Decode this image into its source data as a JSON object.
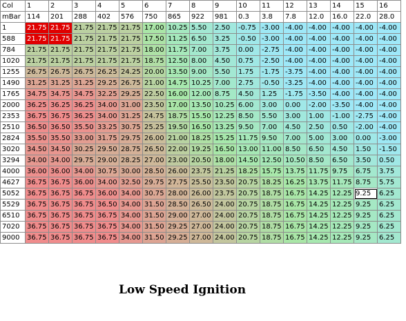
{
  "title": "Low Speed Ignition",
  "header_row_label": "Col",
  "unit_row_label": "mBar",
  "columns": [
    {
      "col": "1",
      "val": "114"
    },
    {
      "col": "2",
      "val": "201"
    },
    {
      "col": "3",
      "val": "288"
    },
    {
      "col": "4",
      "val": "402"
    },
    {
      "col": "5",
      "val": "576"
    },
    {
      "col": "6",
      "val": "750"
    },
    {
      "col": "7",
      "val": "865"
    },
    {
      "col": "8",
      "val": "922"
    },
    {
      "col": "9",
      "val": "981"
    },
    {
      "col": "10",
      "val": "0.3"
    },
    {
      "col": "11",
      "val": "3.8"
    },
    {
      "col": "12",
      "val": "7.8"
    },
    {
      "col": "13",
      "val": "12.0"
    },
    {
      "col": "14",
      "val": "16.0"
    },
    {
      "col": "15",
      "val": "22.0"
    },
    {
      "col": "16",
      "val": "28.0"
    }
  ],
  "rows": [
    {
      "label": "1",
      "values": [
        "21.75",
        "21.75",
        "21.75",
        "21.75",
        "21.75",
        "17.00",
        "10.25",
        "5.50",
        "2.50",
        "-0.75",
        "-3.00",
        "-4.00",
        "-4.00",
        "-4.00",
        "-4.00",
        "-4.00"
      ]
    },
    {
      "label": "588",
      "values": [
        "21.75",
        "21.75",
        "21.75",
        "21.75",
        "21.75",
        "17.50",
        "11.25",
        "6.50",
        "3.25",
        "-0.50",
        "-3.00",
        "-4.00",
        "-4.00",
        "-4.00",
        "-4.00",
        "-4.00"
      ]
    },
    {
      "label": "784",
      "values": [
        "21.75",
        "21.75",
        "21.75",
        "21.75",
        "21.75",
        "18.00",
        "11.75",
        "7.00",
        "3.75",
        "0.00",
        "-2.75",
        "-4.00",
        "-4.00",
        "-4.00",
        "-4.00",
        "-4.00"
      ]
    },
    {
      "label": "1020",
      "values": [
        "21.75",
        "21.75",
        "21.75",
        "21.75",
        "21.75",
        "18.75",
        "12.50",
        "8.00",
        "4.50",
        "0.75",
        "-2.50",
        "-4.00",
        "-4.00",
        "-4.00",
        "-4.00",
        "-4.00"
      ]
    },
    {
      "label": "1255",
      "values": [
        "26.75",
        "26.75",
        "26.75",
        "26.25",
        "24.25",
        "20.00",
        "13.50",
        "9.00",
        "5.50",
        "1.75",
        "-1.75",
        "-3.75",
        "-4.00",
        "-4.00",
        "-4.00",
        "-4.00"
      ]
    },
    {
      "label": "1490",
      "values": [
        "31.25",
        "31.25",
        "31.25",
        "29.25",
        "26.75",
        "21.00",
        "14.75",
        "10.25",
        "7.00",
        "2.75",
        "-0.50",
        "-3.25",
        "-4.00",
        "-4.00",
        "-4.00",
        "-4.00"
      ]
    },
    {
      "label": "1765",
      "values": [
        "34.75",
        "34.75",
        "34.75",
        "32.25",
        "29.25",
        "22.50",
        "16.00",
        "12.00",
        "8.75",
        "4.50",
        "1.25",
        "-1.75",
        "-3.50",
        "-4.00",
        "-4.00",
        "-4.00"
      ]
    },
    {
      "label": "2000",
      "values": [
        "36.25",
        "36.25",
        "36.25",
        "34.00",
        "31.00",
        "23.50",
        "17.00",
        "13.50",
        "10.25",
        "6.00",
        "3.00",
        "0.00",
        "-2.00",
        "-3.50",
        "-4.00",
        "-4.00"
      ]
    },
    {
      "label": "2353",
      "values": [
        "36.75",
        "36.75",
        "36.25",
        "34.00",
        "31.25",
        "24.75",
        "18.75",
        "15.50",
        "12.25",
        "8.50",
        "5.50",
        "3.00",
        "1.00",
        "-1.00",
        "-2.75",
        "-4.00"
      ]
    },
    {
      "label": "2510",
      "values": [
        "36.50",
        "36.50",
        "35.50",
        "33.25",
        "30.75",
        "25.25",
        "19.50",
        "16.50",
        "13.25",
        "9.50",
        "7.00",
        "4.50",
        "2.50",
        "0.50",
        "-2.00",
        "-4.00"
      ]
    },
    {
      "label": "2824",
      "values": [
        "35.50",
        "35.50",
        "33.00",
        "31.75",
        "29.75",
        "26.00",
        "21.00",
        "18.25",
        "15.25",
        "11.75",
        "9.50",
        "7.00",
        "5.00",
        "3.00",
        "0.00",
        "-3.00"
      ]
    },
    {
      "label": "3020",
      "values": [
        "34.50",
        "34.50",
        "30.25",
        "29.50",
        "28.75",
        "26.50",
        "22.00",
        "19.25",
        "16.50",
        "13.00",
        "11.00",
        "8.50",
        "6.50",
        "4.50",
        "1.50",
        "-1.50"
      ]
    },
    {
      "label": "3294",
      "values": [
        "34.00",
        "34.00",
        "29.75",
        "29.00",
        "28.25",
        "27.00",
        "23.00",
        "20.50",
        "18.00",
        "14.50",
        "12.50",
        "10.50",
        "8.50",
        "6.50",
        "3.50",
        "0.50"
      ]
    },
    {
      "label": "4000",
      "values": [
        "36.00",
        "36.00",
        "34.00",
        "30.75",
        "30.00",
        "28.50",
        "26.00",
        "23.75",
        "21.25",
        "18.25",
        "15.75",
        "13.75",
        "11.75",
        "9.75",
        "6.75",
        "3.75"
      ]
    },
    {
      "label": "4627",
      "values": [
        "36.75",
        "36.75",
        "36.00",
        "34.00",
        "32.50",
        "29.75",
        "27.75",
        "25.50",
        "23.50",
        "20.75",
        "18.25",
        "16.25",
        "13.75",
        "11.75",
        "8.75",
        "5.75"
      ]
    },
    {
      "label": "5052",
      "values": [
        "36.75",
        "36.75",
        "36.75",
        "36.00",
        "34.00",
        "30.75",
        "28.00",
        "26.00",
        "23.75",
        "20.75",
        "18.75",
        "16.75",
        "14.25",
        "12.25",
        "9.25",
        "6.25"
      ]
    },
    {
      "label": "5529",
      "values": [
        "36.75",
        "36.75",
        "36.75",
        "36.50",
        "34.00",
        "31.50",
        "28.50",
        "26.50",
        "24.00",
        "20.75",
        "18.75",
        "16.75",
        "14.25",
        "12.25",
        "9.25",
        "6.25"
      ]
    },
    {
      "label": "6510",
      "values": [
        "36.75",
        "36.75",
        "36.75",
        "36.75",
        "34.00",
        "31.50",
        "29.00",
        "27.00",
        "24.00",
        "20.75",
        "18.75",
        "16.75",
        "14.25",
        "12.25",
        "9.25",
        "6.25"
      ]
    },
    {
      "label": "7020",
      "values": [
        "36.75",
        "36.75",
        "36.75",
        "36.75",
        "34.00",
        "31.50",
        "29.25",
        "27.00",
        "24.00",
        "20.75",
        "18.75",
        "16.75",
        "14.25",
        "12.25",
        "9.25",
        "6.25"
      ]
    },
    {
      "label": "9000",
      "values": [
        "36.75",
        "36.75",
        "36.75",
        "36.75",
        "34.00",
        "31.50",
        "29.25",
        "27.00",
        "24.00",
        "20.75",
        "18.75",
        "16.75",
        "14.25",
        "12.25",
        "9.25",
        "6.25"
      ]
    }
  ],
  "selected_cells": [
    [
      0,
      0
    ],
    [
      0,
      1
    ],
    [
      1,
      0
    ],
    [
      1,
      1
    ]
  ],
  "cursor_cell": [
    15,
    14
  ],
  "colors": {
    "selected": "#e00000",
    "low": "#9ee8f8",
    "mid": "#a8e8a8",
    "high": "#f08c8c"
  }
}
